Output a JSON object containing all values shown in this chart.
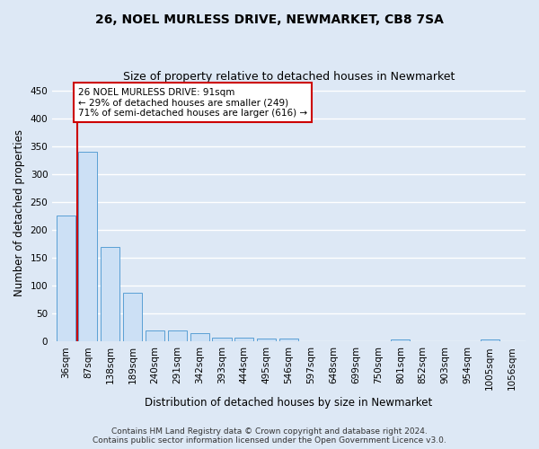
{
  "title": "26, NOEL MURLESS DRIVE, NEWMARKET, CB8 7SA",
  "subtitle": "Size of property relative to detached houses in Newmarket",
  "xlabel": "Distribution of detached houses by size in Newmarket",
  "ylabel": "Number of detached properties",
  "bar_labels": [
    "36sqm",
    "87sqm",
    "138sqm",
    "189sqm",
    "240sqm",
    "291sqm",
    "342sqm",
    "393sqm",
    "444sqm",
    "495sqm",
    "546sqm",
    "597sqm",
    "648sqm",
    "699sqm",
    "750sqm",
    "801sqm",
    "852sqm",
    "903sqm",
    "954sqm",
    "1005sqm",
    "1056sqm"
  ],
  "bar_values": [
    225,
    340,
    170,
    88,
    20,
    20,
    15,
    6,
    6,
    5,
    5,
    0,
    0,
    0,
    0,
    4,
    0,
    0,
    0,
    4,
    0
  ],
  "bar_color": "#cce0f5",
  "bar_edge_color": "#5a9fd4",
  "highlight_line_color": "#cc0000",
  "annotation_text": "26 NOEL MURLESS DRIVE: 91sqm\n← 29% of detached houses are smaller (249)\n71% of semi-detached houses are larger (616) →",
  "annotation_box_color": "#ffffff",
  "annotation_box_edge": "#cc0000",
  "ylim": [
    0,
    460
  ],
  "yticks": [
    0,
    50,
    100,
    150,
    200,
    250,
    300,
    350,
    400,
    450
  ],
  "footer_text": "Contains HM Land Registry data © Crown copyright and database right 2024.\nContains public sector information licensed under the Open Government Licence v3.0.",
  "bg_color": "#dde8f5",
  "grid_color": "#ffffff",
  "title_fontsize": 10,
  "subtitle_fontsize": 9,
  "tick_fontsize": 7.5,
  "ylabel_fontsize": 8.5,
  "xlabel_fontsize": 8.5,
  "footer_fontsize": 6.5
}
